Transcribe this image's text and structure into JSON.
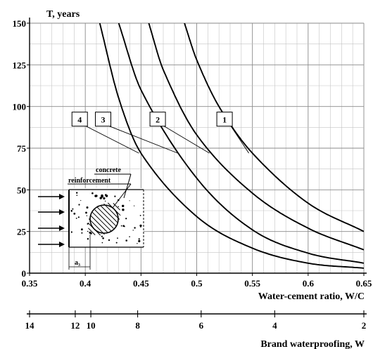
{
  "chart_data": {
    "type": "line",
    "ylabel": "T, years",
    "xlabel": "Water-cement ratio, W/C",
    "xlim": [
      0.35,
      0.65
    ],
    "ylim": [
      0,
      150
    ],
    "x_ticks": [
      "0.35",
      "0.4",
      "0.45",
      "0.5",
      "0.55",
      "0.6",
      "0.65"
    ],
    "y_ticks": [
      "0",
      "25",
      "50",
      "75",
      "100",
      "125",
      "150"
    ],
    "grid": true,
    "series": [
      {
        "name": "1",
        "x": [
          0.489,
          0.5,
          0.52,
          0.55,
          0.6,
          0.65
        ],
        "y": [
          150,
          128,
          100,
          72,
          42,
          25
        ]
      },
      {
        "name": "2",
        "x": [
          0.457,
          0.47,
          0.5,
          0.55,
          0.6,
          0.65
        ],
        "y": [
          150,
          122,
          83,
          48,
          27,
          14
        ]
      },
      {
        "name": "3",
        "x": [
          0.43,
          0.45,
          0.5,
          0.55,
          0.6,
          0.65
        ],
        "y": [
          150,
          110,
          57,
          26,
          12,
          6
        ]
      },
      {
        "name": "4",
        "x": [
          0.413,
          0.43,
          0.45,
          0.5,
          0.55,
          0.6,
          0.65
        ],
        "y": [
          150,
          105,
          72,
          34,
          15,
          6,
          3
        ]
      }
    ],
    "secondary_axis": {
      "label": "Brand waterproofing, W",
      "ticks": [
        {
          "label": "14",
          "wc": 0.35
        },
        {
          "label": "12",
          "wc": 0.391
        },
        {
          "label": "10",
          "wc": 0.405
        },
        {
          "label": "8",
          "wc": 0.447
        },
        {
          "label": "6",
          "wc": 0.504
        },
        {
          "label": "4",
          "wc": 0.57
        },
        {
          "label": "2",
          "wc": 0.65
        }
      ]
    },
    "inset": {
      "labels": [
        "concrete",
        "reinforcement",
        "a₃"
      ]
    }
  }
}
